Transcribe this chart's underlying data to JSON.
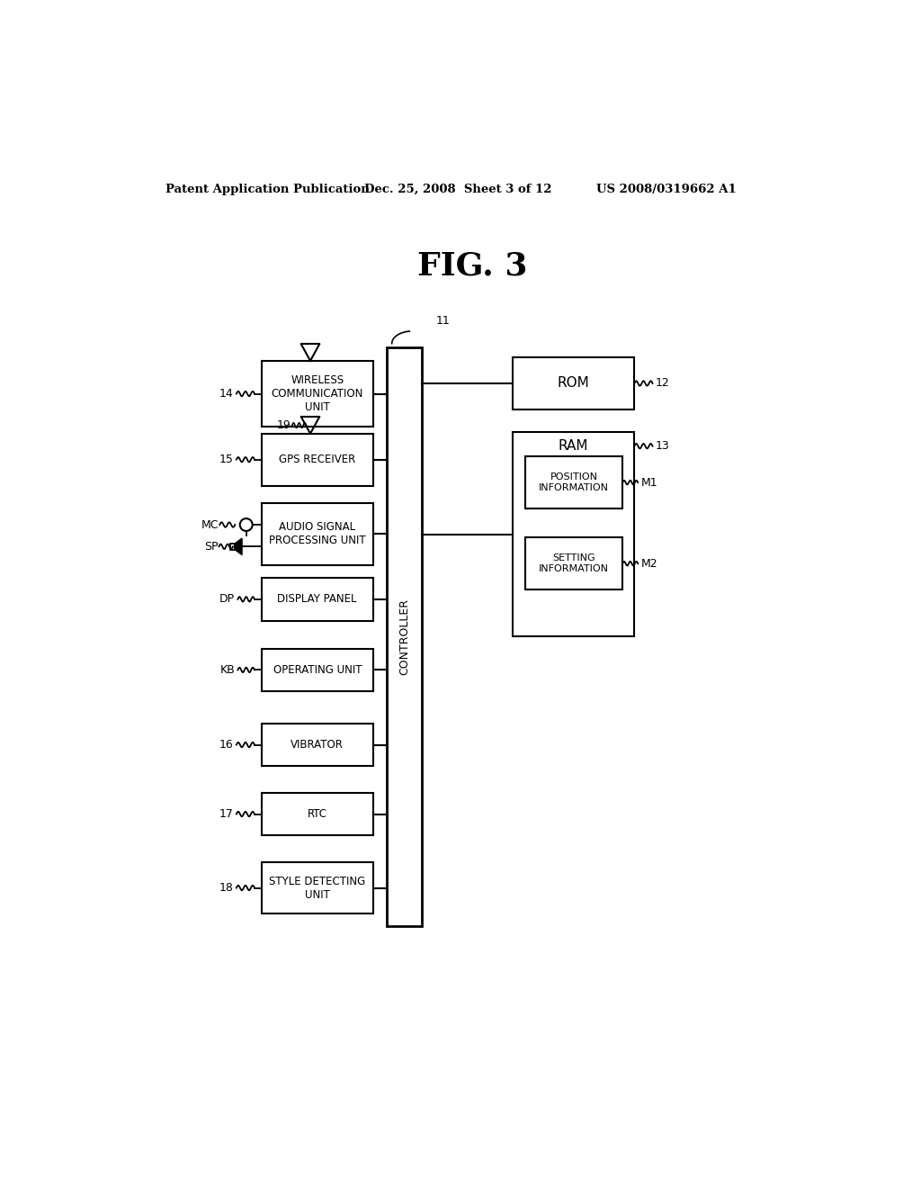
{
  "bg_color": "#ffffff",
  "header_left": "Patent Application Publication",
  "header_mid": "Dec. 25, 2008  Sheet 3 of 12",
  "header_right": "US 2008/0319662 A1",
  "fig_title": "FIG. 3",
  "left_boxes": [
    {
      "label": "WIRELESS\nCOMMUNICATION\nUNIT",
      "ref": "14",
      "has_antenna": true,
      "antenna_ref": null
    },
    {
      "label": "GPS RECEIVER",
      "ref": "15",
      "has_antenna": true,
      "antenna_ref": "19"
    },
    {
      "label": "AUDIO SIGNAL\nPROCESSING UNIT",
      "ref": null,
      "has_antenna": false,
      "antenna_ref": null
    },
    {
      "label": "DISPLAY PANEL",
      "ref": null,
      "has_antenna": false,
      "antenna_ref": null
    },
    {
      "label": "OPERATING UNIT",
      "ref": null,
      "has_antenna": false,
      "antenna_ref": null
    },
    {
      "label": "VIBRATOR",
      "ref": "16",
      "has_antenna": false,
      "antenna_ref": null
    },
    {
      "label": "RTC",
      "ref": "17",
      "has_antenna": false,
      "antenna_ref": null
    },
    {
      "label": "STYLE DETECTING\nUNIT",
      "ref": "18",
      "has_antenna": false,
      "antenna_ref": null
    }
  ],
  "controller_label": "CONTROLLER",
  "controller_ref": "11",
  "rom_label": "ROM",
  "rom_ref": "12",
  "ram_label": "RAM",
  "ram_ref": "13",
  "sub_boxes": [
    {
      "label": "POSITION\nINFORMATION",
      "ref": "M1"
    },
    {
      "label": "SETTING\nINFORMATION",
      "ref": "M2"
    }
  ],
  "mc_label": "MC",
  "sp_label": "SP",
  "dp_label": "DP",
  "kb_label": "KB"
}
